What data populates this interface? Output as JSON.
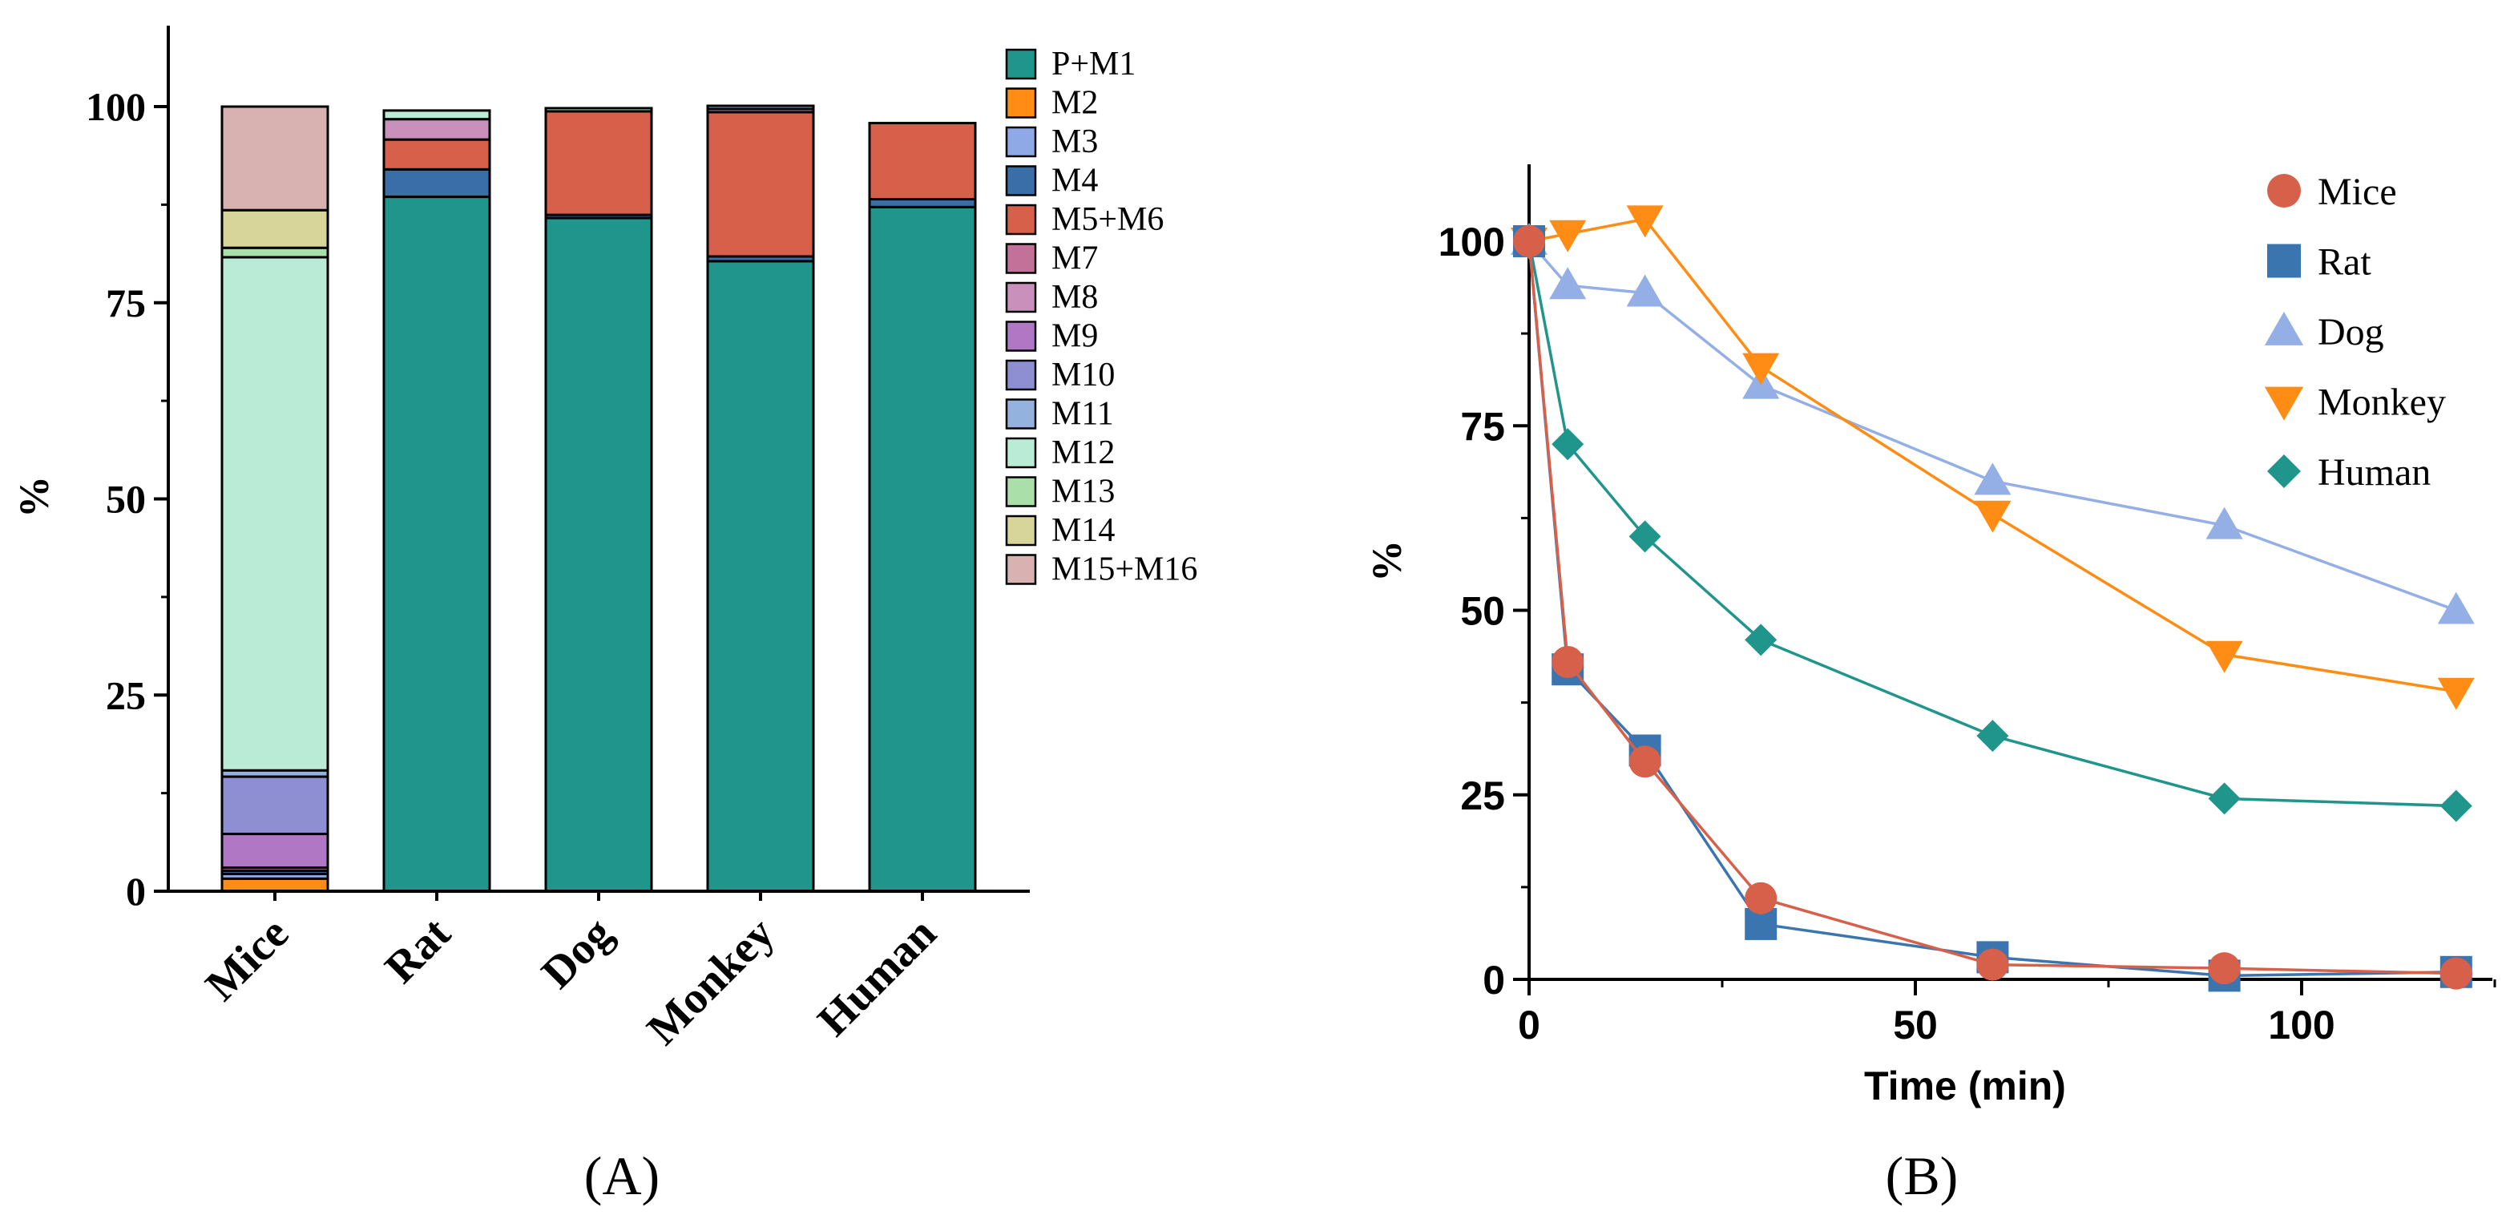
{
  "panel_labels": {
    "a": "(A)",
    "b": "(B)"
  },
  "chart_data": [
    {
      "type": "bar",
      "stacked": true,
      "title": "",
      "xlabel": "",
      "ylabel": "%",
      "ylim": [
        0,
        110
      ],
      "yticks": [
        0,
        25,
        50,
        75,
        100
      ],
      "categories": [
        "Mice",
        "Rat",
        "Dog",
        "Monkey",
        "Human"
      ],
      "legend_position": "top-right",
      "series": [
        {
          "name": "P+M1",
          "color": "#1f958b",
          "values": [
            0.0,
            88.5,
            85.8,
            80.3,
            87.2
          ]
        },
        {
          "name": "M2",
          "color": "#ff8c14",
          "values": [
            1.6,
            0.0,
            0.0,
            0.0,
            0.0
          ]
        },
        {
          "name": "M3",
          "color": "#8fa8e6",
          "values": [
            0.6,
            0.0,
            0.0,
            0.0,
            0.0
          ]
        },
        {
          "name": "M4",
          "color": "#3a6ea8",
          "values": [
            0.4,
            3.5,
            0.4,
            0.6,
            1.0
          ]
        },
        {
          "name": "M5+M6",
          "color": "#d7604a",
          "values": [
            0.0,
            3.8,
            13.2,
            18.4,
            9.7
          ]
        },
        {
          "name": "M7",
          "color": "#c4719a",
          "values": [
            0.4,
            0.0,
            0.0,
            0.0,
            0.0
          ]
        },
        {
          "name": "M8",
          "color": "#c890ba",
          "values": [
            0.0,
            2.6,
            0.0,
            0.4,
            0.0
          ]
        },
        {
          "name": "M9",
          "color": "#b077c4",
          "values": [
            4.3,
            0.0,
            0.0,
            0.0,
            0.0
          ]
        },
        {
          "name": "M10",
          "color": "#8e8fd2",
          "values": [
            7.3,
            0.0,
            0.0,
            0.0,
            0.0
          ]
        },
        {
          "name": "M11",
          "color": "#93b2de",
          "values": [
            0.8,
            0.0,
            0.0,
            0.4,
            0.0
          ]
        },
        {
          "name": "M12",
          "color": "#b9ebd6",
          "values": [
            65.4,
            1.1,
            0.4,
            0.0,
            0.0
          ]
        },
        {
          "name": "M13",
          "color": "#aadfaa",
          "values": [
            1.2,
            0.0,
            0.0,
            0.0,
            0.0
          ]
        },
        {
          "name": "M14",
          "color": "#d8d59a",
          "values": [
            4.8,
            0.0,
            0.0,
            0.0,
            0.0
          ]
        },
        {
          "name": "M15+M16",
          "color": "#d8b1b1",
          "values": [
            13.2,
            0.0,
            0.0,
            0.0,
            0.0
          ]
        }
      ]
    },
    {
      "type": "line",
      "title": "",
      "xlabel": "Time (min)",
      "ylabel": "%",
      "xlim": [
        0,
        125
      ],
      "ylim": [
        0,
        110
      ],
      "xticks": [
        0,
        50,
        100
      ],
      "yticks": [
        0,
        25,
        50,
        75,
        100
      ],
      "x": [
        0,
        5,
        15,
        30,
        60,
        90,
        120
      ],
      "legend_position": "top-right",
      "series": [
        {
          "name": "Mice",
          "color": "#d7604a",
          "marker": "circle",
          "values": [
            100,
            43,
            29.5,
            11,
            2,
            1.5,
            0.8
          ]
        },
        {
          "name": "Rat",
          "color": "#3a75b0",
          "marker": "square",
          "values": [
            100,
            42,
            31,
            7.5,
            3,
            0.5,
            1
          ]
        },
        {
          "name": "Dog",
          "color": "#94aee6",
          "marker": "triangle",
          "values": [
            100,
            94,
            93,
            80.5,
            67.5,
            61.5,
            50
          ]
        },
        {
          "name": "Monkey",
          "color": "#ff8c14",
          "marker": "tri-down",
          "values": [
            100,
            101,
            103,
            83,
            63,
            44,
            39
          ]
        },
        {
          "name": "Human",
          "color": "#1f958b",
          "marker": "diamond",
          "values": [
            100,
            72.5,
            60,
            46,
            33,
            24.5,
            23.5
          ]
        }
      ]
    }
  ]
}
